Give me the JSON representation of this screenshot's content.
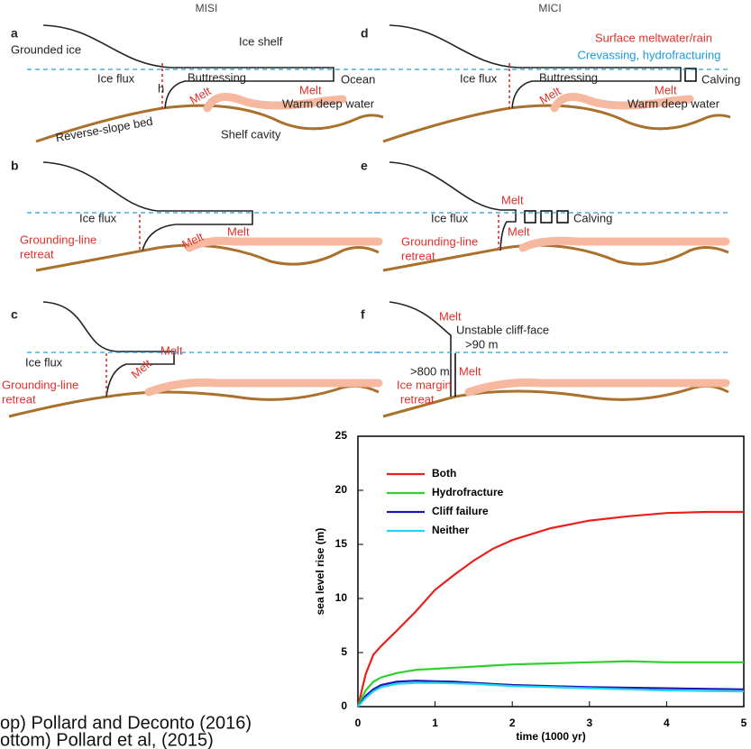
{
  "diagram": {
    "columns": [
      "MISI",
      "MICI"
    ],
    "panels": [
      {
        "label": "a",
        "texts": [
          "Grounded ice",
          "Ice shelf",
          "Ocean",
          "Ice flux",
          "h",
          "Buttressing",
          "Melt",
          "Melt",
          "Warm deep water",
          "Reverse-slope bed",
          "Shelf cavity"
        ]
      },
      {
        "label": "b",
        "texts": [
          "Ice flux",
          "Grounding-line",
          "retreat",
          "Melt",
          "Melt"
        ]
      },
      {
        "label": "c",
        "texts": [
          "Ice flux",
          "Melt",
          "Melt",
          "Grounding-line",
          "retreat"
        ]
      },
      {
        "label": "d",
        "texts": [
          "Surface meltwater/rain",
          "Crevassing, hydrofracturing",
          "Ice flux",
          "Buttressing",
          "Melt",
          "Calving",
          "Melt",
          "Warm deep water"
        ]
      },
      {
        "label": "e",
        "texts": [
          "Melt",
          "Ice flux",
          "Calving",
          "Grounding-line",
          "retreat",
          "Melt"
        ]
      },
      {
        "label": "f",
        "texts": [
          "Melt",
          "Unstable cliff-face",
          ">90 m",
          ">800 m",
          "Melt",
          "Ice margin",
          "retreat"
        ]
      }
    ]
  },
  "caption": [
    "op) Pollard and Deconto (2016)",
    "ottom) Pollard et al, (2015)"
  ],
  "chart_data": {
    "type": "line",
    "x_label": "time (1000 yr)",
    "y_label": "sea level rise (m)",
    "x": [
      0,
      0.05,
      0.1,
      0.2,
      0.3,
      0.5,
      0.75,
      1,
      1.25,
      1.5,
      1.75,
      2,
      2.5,
      3,
      3.5,
      4,
      4.5,
      5
    ],
    "series": [
      {
        "name": "Both",
        "color": "#e8201c",
        "values": [
          0,
          1.5,
          3,
          4.8,
          5.6,
          7,
          8.8,
          10.8,
          12.2,
          13.5,
          14.6,
          15.4,
          16.5,
          17.2,
          17.6,
          17.9,
          18,
          18
        ]
      },
      {
        "name": "Hydrofracture",
        "color": "#2ed12e",
        "values": [
          0,
          0.8,
          1.5,
          2.3,
          2.7,
          3.1,
          3.4,
          3.5,
          3.6,
          3.7,
          3.8,
          3.9,
          4.0,
          4.1,
          4.2,
          4.1,
          4.1,
          4.1
        ]
      },
      {
        "name": "Cliff failure",
        "color": "#1a1ab0",
        "values": [
          0,
          0.5,
          1,
          1.6,
          2,
          2.3,
          2.4,
          2.35,
          2.3,
          2.2,
          2.1,
          2.0,
          1.9,
          1.8,
          1.75,
          1.7,
          1.65,
          1.6
        ]
      },
      {
        "name": "Neither",
        "color": "#22d6f0",
        "values": [
          0,
          0.4,
          0.8,
          1.4,
          1.8,
          2.1,
          2.2,
          2.2,
          2.15,
          2.1,
          2.0,
          1.9,
          1.8,
          1.7,
          1.6,
          1.5,
          1.45,
          1.4
        ]
      }
    ],
    "xlim": [
      0,
      5
    ],
    "ylim": [
      0,
      25
    ],
    "xticks": [
      0,
      1,
      2,
      3,
      4,
      5
    ],
    "yticks": [
      0,
      5,
      10,
      15,
      20,
      25
    ],
    "legend": "upper left"
  }
}
